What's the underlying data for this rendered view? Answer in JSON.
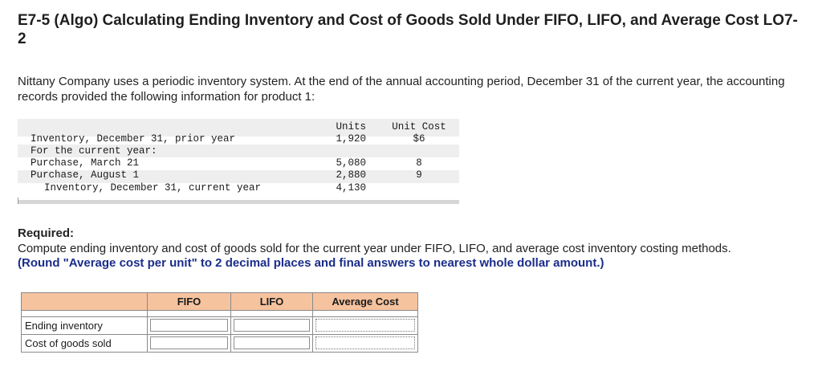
{
  "header": {
    "title": "E7-5 (Algo) Calculating Ending Inventory and Cost of Goods Sold Under FIFO, LIFO, and Average Cost LO7-2"
  },
  "intro": {
    "text": "Nittany Company uses a periodic inventory system. At the end of the annual accounting period, December 31 of the current year, the accounting records provided the following information for product 1:"
  },
  "inventory_table": {
    "col_units": "Units",
    "col_cost": "Unit Cost",
    "rows": [
      {
        "label": "Inventory, December 31, prior year",
        "units": "1,920",
        "cost": "$6"
      },
      {
        "label": "For the current year:",
        "units": "",
        "cost": ""
      },
      {
        "label": "Purchase, March 21",
        "units": "5,080",
        "cost": "8"
      },
      {
        "label": "Purchase, August 1",
        "units": "2,880",
        "cost": "9"
      },
      {
        "label": "Inventory, December 31, current year",
        "units": "4,130",
        "cost": ""
      }
    ]
  },
  "required": {
    "heading": "Required:",
    "text": "Compute ending inventory and cost of goods sold for the current year under FIFO, LIFO, and average cost inventory costing methods.",
    "note": "(Round \"Average cost per unit\" to 2 decimal places and final answers to nearest whole dollar amount.)"
  },
  "answer_table": {
    "headers": [
      "FIFO",
      "LIFO",
      "Average Cost"
    ],
    "rows": [
      {
        "label": "Ending inventory",
        "values": [
          "",
          "",
          ""
        ]
      },
      {
        "label": "Cost of goods sold",
        "values": [
          "",
          "",
          ""
        ]
      }
    ]
  }
}
